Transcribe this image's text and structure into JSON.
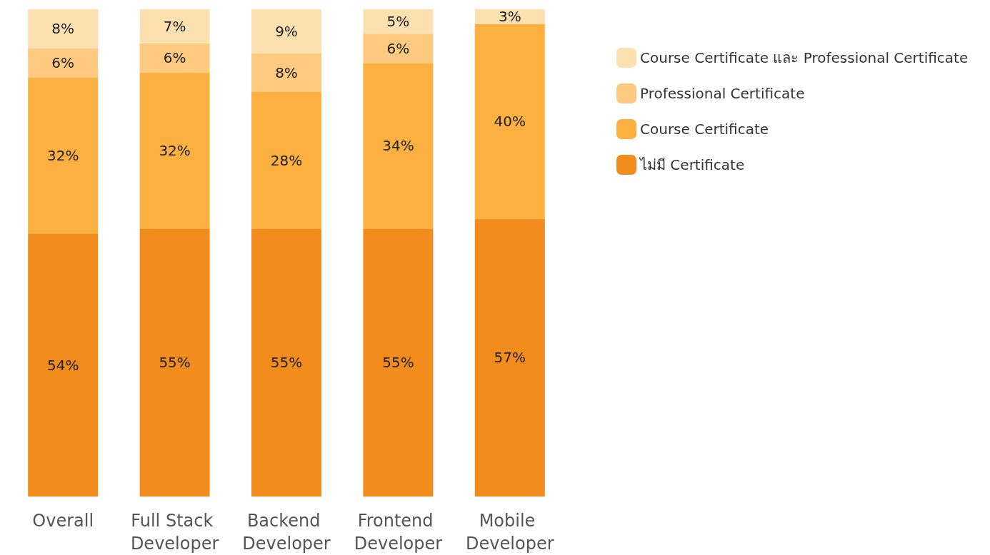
{
  "chart_data": {
    "type": "bar",
    "stacked": true,
    "categories": [
      "Overall",
      "Full Stack Developer",
      "Backend Developer",
      "Frontend Developer",
      "Mobile Developer"
    ],
    "series": [
      {
        "name": "ไม่มี Certificate",
        "color": "#f28c1c",
        "values": [
          54,
          55,
          55,
          55,
          57
        ],
        "value_labels": [
          "54%",
          "55%",
          "55%",
          "55%",
          "57%"
        ]
      },
      {
        "name": "Course Certificate",
        "color": "#fbb040",
        "values": [
          32,
          32,
          28,
          34,
          40
        ],
        "value_labels": [
          "32%",
          "32%",
          "28%",
          "34%",
          "40%"
        ]
      },
      {
        "name": "Professional Certificate",
        "color": "#fdca80",
        "values": [
          6,
          6,
          8,
          6,
          null
        ],
        "value_labels": [
          "6%",
          "6%",
          "8%",
          "6%",
          null
        ]
      },
      {
        "name": "Course Certificate และ Professional Certificate",
        "color": "#fde0b0",
        "values": [
          8,
          7,
          9,
          5,
          3
        ],
        "value_labels": [
          "8%",
          "7%",
          "9%",
          "5%",
          "3%"
        ]
      }
    ],
    "ylim": [
      0,
      100
    ],
    "tick_labels": "x",
    "legend": "top right"
  }
}
